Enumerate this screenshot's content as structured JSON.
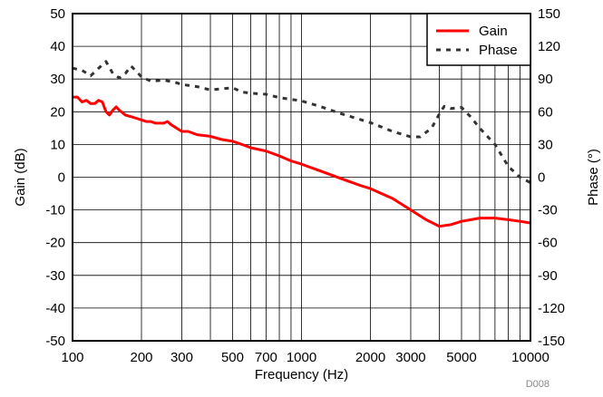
{
  "chart_data": {
    "type": "line",
    "xlabel": "Frequency (Hz)",
    "ylabel_left": "Gain (dB)",
    "ylabel_right": "Phase (°)",
    "x_scale": "log",
    "xlim": [
      100,
      10000
    ],
    "ylim_left": [
      -50,
      50
    ],
    "ylim_right": [
      -150,
      150
    ],
    "x_ticks": [
      100,
      200,
      300,
      500,
      700,
      1000,
      2000,
      3000,
      5000,
      10000
    ],
    "x_tick_labels": [
      "100",
      "200",
      "300",
      "500",
      "700",
      "1000",
      "2000",
      "3000",
      "5000",
      "10000"
    ],
    "y_ticks_left": [
      50,
      40,
      30,
      20,
      10,
      0,
      -10,
      -20,
      -30,
      -40,
      -50
    ],
    "y_ticks_right": [
      150,
      120,
      90,
      60,
      30,
      0,
      -30,
      -60,
      -90,
      -120,
      -150
    ],
    "grid": true,
    "legend_position": "top-right",
    "id_label": "D008",
    "series": [
      {
        "name": "Gain",
        "axis": "left",
        "color": "#ff0000",
        "style": "solid",
        "x": [
          100,
          105,
          110,
          115,
          120,
          125,
          130,
          135,
          140,
          145,
          150,
          155,
          160,
          170,
          180,
          190,
          200,
          210,
          220,
          230,
          240,
          250,
          260,
          270,
          300,
          320,
          350,
          400,
          450,
          500,
          550,
          600,
          700,
          800,
          900,
          1000,
          1200,
          1500,
          1800,
          2000,
          2500,
          3000,
          3500,
          4000,
          4500,
          5000,
          5500,
          6000,
          7000,
          8000,
          9000,
          10000
        ],
        "values": [
          24.5,
          24.5,
          23.0,
          23.5,
          22.5,
          22.5,
          23.5,
          23.0,
          20.0,
          19.0,
          20.5,
          21.5,
          20.5,
          19.0,
          18.5,
          18.0,
          17.5,
          17.0,
          17.0,
          16.5,
          16.5,
          16.5,
          17.0,
          16.0,
          14.0,
          14.0,
          13.0,
          12.5,
          11.5,
          11.0,
          10.0,
          9.0,
          8.0,
          6.5,
          5.0,
          4.0,
          2.0,
          -0.5,
          -2.5,
          -3.5,
          -6.5,
          -10.0,
          -13.0,
          -15.0,
          -14.5,
          -13.5,
          -13.0,
          -12.5,
          -12.5,
          -13.0,
          -13.5,
          -14.0
        ]
      },
      {
        "name": "Phase",
        "axis": "right",
        "color": "#333333",
        "style": "dashed",
        "x": [
          100,
          110,
          120,
          130,
          140,
          150,
          160,
          170,
          180,
          190,
          200,
          220,
          250,
          280,
          300,
          350,
          400,
          500,
          550,
          600,
          700,
          800,
          1000,
          1200,
          1500,
          2000,
          2500,
          3000,
          3300,
          3700,
          4000,
          4200,
          4500,
          5000,
          5500,
          6000,
          7000,
          8000,
          9000,
          10000
        ],
        "values": [
          100,
          98,
          93,
          100,
          106,
          95,
          91,
          95,
          102,
          97,
          92,
          88,
          89,
          87,
          85,
          83,
          80,
          82,
          78,
          77,
          76,
          73,
          70,
          65,
          58,
          50,
          42,
          37,
          37,
          45,
          58,
          65,
          63,
          64,
          55,
          45,
          30,
          10,
          0,
          -5
        ]
      }
    ]
  }
}
